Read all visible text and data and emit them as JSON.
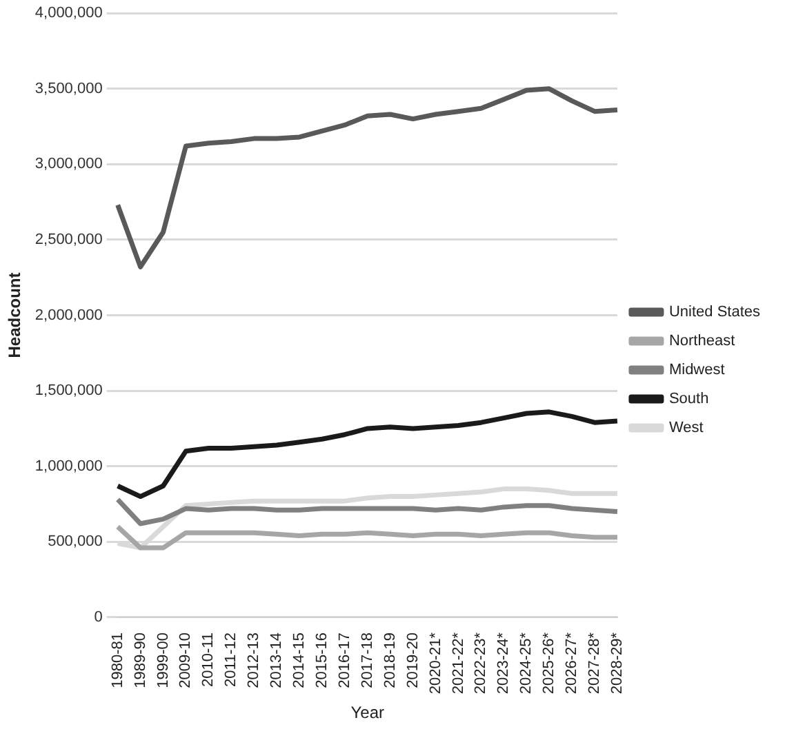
{
  "chart_data": {
    "type": "line",
    "xlabel": "Year",
    "ylabel": "Headcount",
    "categories": [
      "1980-81",
      "1989-90",
      "1999-00",
      "2009-10",
      "2010-11",
      "2011-12",
      "2012-13",
      "2013-14",
      "2014-15",
      "2015-16",
      "2016-17",
      "2017-18",
      "2018-19",
      "2019-20",
      "2020-21*",
      "2021-22*",
      "2022-23*",
      "2023-24*",
      "2024-25*",
      "2025-26*",
      "2026-27*",
      "2027-28*",
      "2028-29*"
    ],
    "series": [
      {
        "name": "United States",
        "color": "#595959",
        "values": [
          2730000,
          2320000,
          2550000,
          3120000,
          3140000,
          3150000,
          3170000,
          3170000,
          3180000,
          3220000,
          3260000,
          3320000,
          3330000,
          3300000,
          3330000,
          3350000,
          3370000,
          3430000,
          3490000,
          3500000,
          3420000,
          3350000,
          3360000
        ]
      },
      {
        "name": "Northeast",
        "color": "#a6a6a6",
        "values": [
          600000,
          460000,
          460000,
          560000,
          560000,
          560000,
          560000,
          550000,
          540000,
          550000,
          550000,
          560000,
          550000,
          540000,
          550000,
          550000,
          540000,
          550000,
          560000,
          560000,
          540000,
          530000,
          530000
        ]
      },
      {
        "name": "Midwest",
        "color": "#808080",
        "values": [
          780000,
          620000,
          650000,
          720000,
          710000,
          720000,
          720000,
          710000,
          710000,
          720000,
          720000,
          720000,
          720000,
          720000,
          710000,
          720000,
          710000,
          730000,
          740000,
          740000,
          720000,
          710000,
          700000
        ]
      },
      {
        "name": "South",
        "color": "#1a1a1a",
        "values": [
          870000,
          800000,
          870000,
          1100000,
          1120000,
          1120000,
          1130000,
          1140000,
          1160000,
          1180000,
          1210000,
          1250000,
          1260000,
          1250000,
          1260000,
          1270000,
          1290000,
          1320000,
          1350000,
          1360000,
          1330000,
          1290000,
          1300000
        ]
      },
      {
        "name": "West",
        "color": "#d9d9d9",
        "values": [
          490000,
          460000,
          600000,
          740000,
          750000,
          760000,
          770000,
          770000,
          770000,
          770000,
          770000,
          790000,
          800000,
          800000,
          810000,
          820000,
          830000,
          850000,
          850000,
          840000,
          820000,
          820000,
          820000
        ]
      }
    ],
    "ylim": [
      0,
      4000000
    ],
    "yticks": [
      0,
      {
        "value": 500000,
        "label": "500,000"
      },
      {
        "value": 1000000,
        "label": "1,000,000"
      },
      {
        "value": 1500000,
        "label": "1,500,000"
      },
      {
        "value": 2000000,
        "label": "2,000,000"
      },
      {
        "value": 2500000,
        "label": "2,500,000"
      },
      {
        "value": 3000000,
        "label": "3,000,000"
      },
      {
        "value": 3500000,
        "label": "3,500,000"
      },
      {
        "value": 4000000,
        "label": "4,000,000"
      }
    ],
    "grid": "y",
    "legend": "right",
    "marker": "none",
    "line_style": "solid"
  }
}
